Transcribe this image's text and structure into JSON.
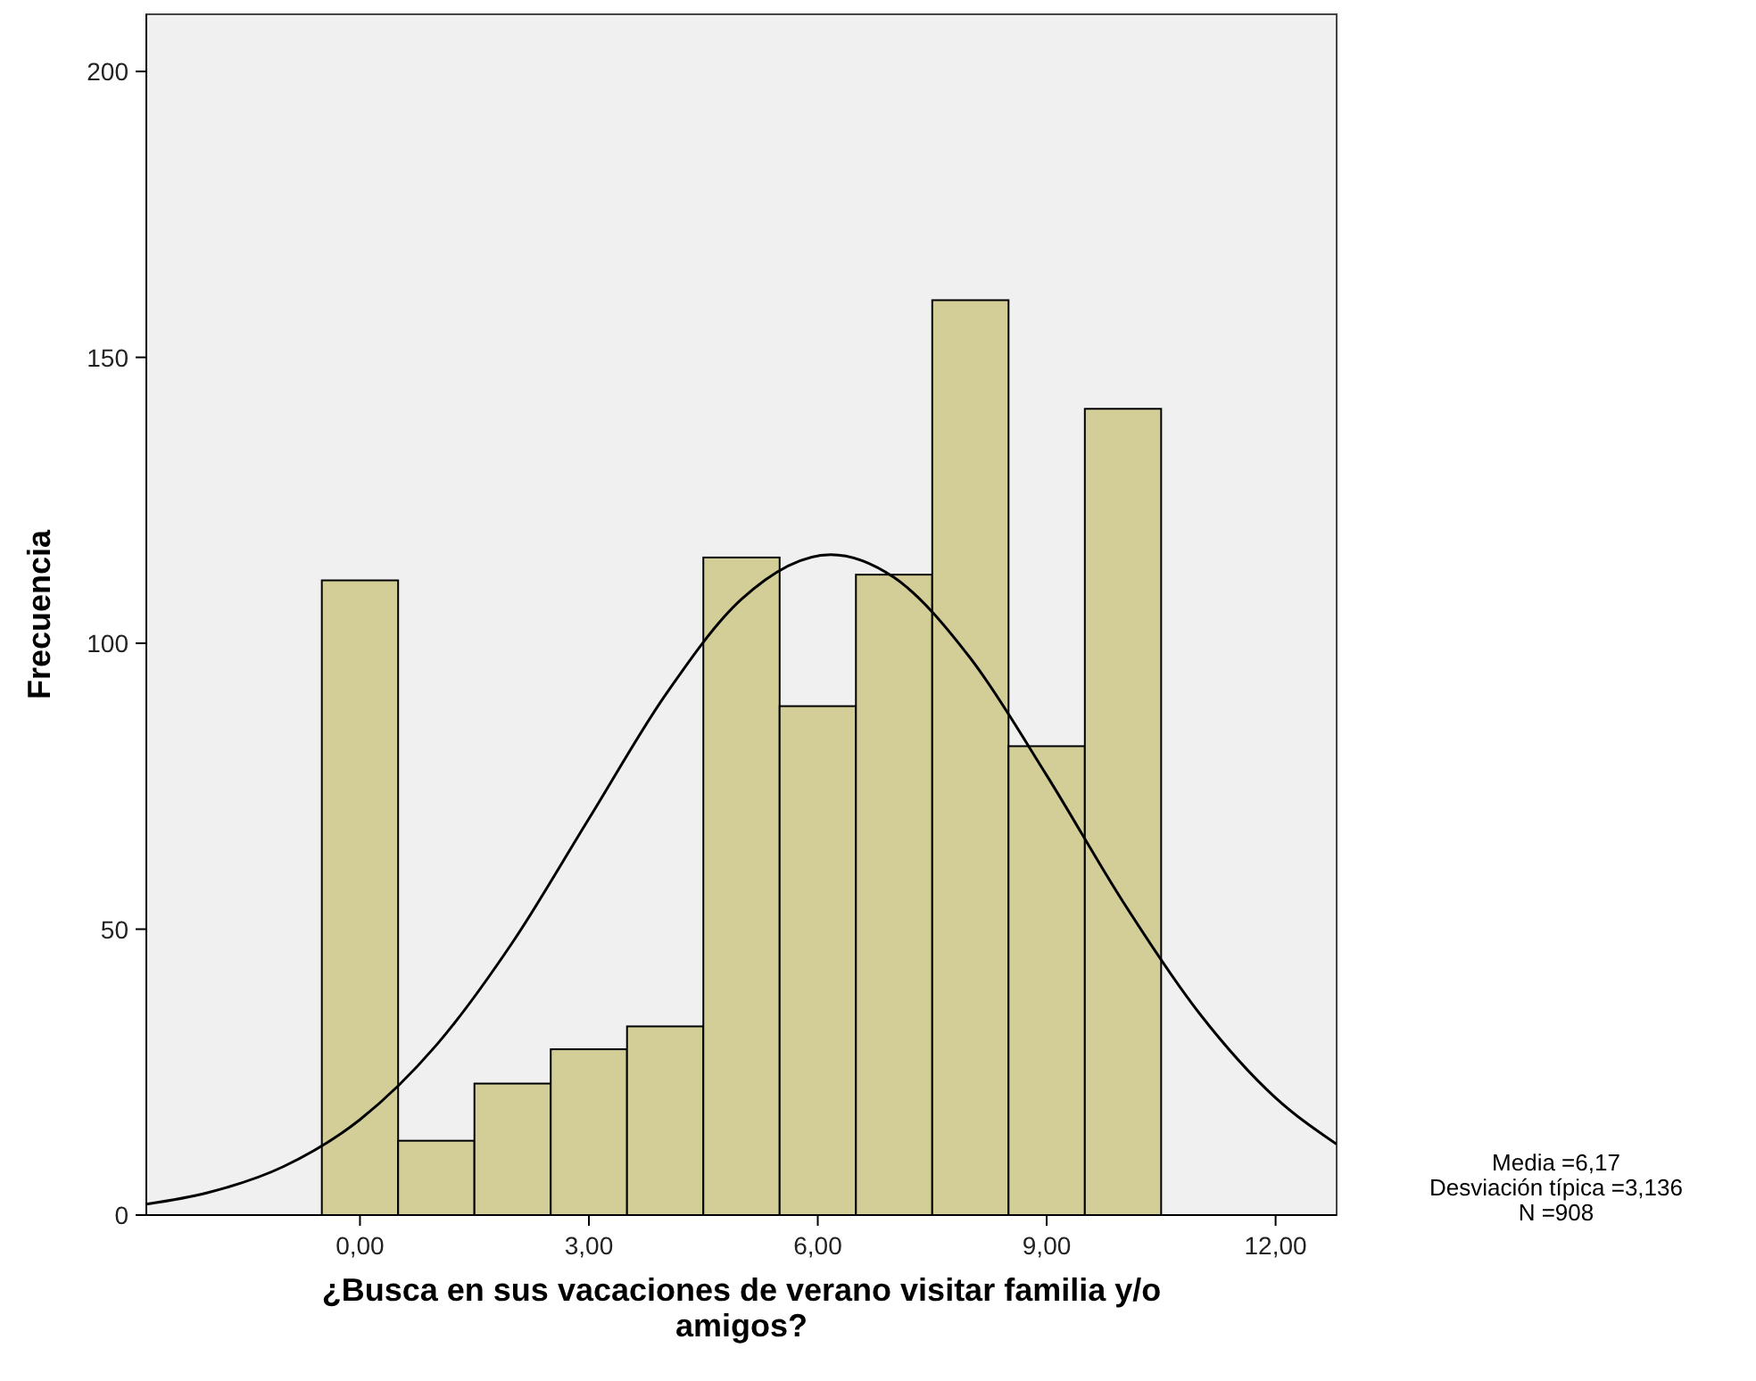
{
  "chart_data": {
    "type": "histogram",
    "xlabel": "¿Busca en sus vacaciones de verano visitar familia y/o amigos?",
    "ylabel": "Frecuencia",
    "bins": [
      -0.5,
      0.5,
      1.5,
      2.5,
      3.5,
      4.5,
      5.5,
      6.5,
      7.5,
      8.5,
      9.5,
      10.5
    ],
    "values": [
      111,
      13,
      23,
      29,
      33,
      115,
      89,
      112,
      160,
      82,
      141
    ],
    "color": "#d3ce97",
    "series": [
      {
        "type": "line",
        "color": "#000000",
        "x": [
          -2.8,
          -2,
          -1,
          0,
          1,
          2,
          3,
          4,
          5,
          6.17,
          7,
          8,
          9,
          10,
          11,
          12,
          12.8
        ],
        "values": [
          1.9,
          3.9,
          8.5,
          16.7,
          29.7,
          47.7,
          69.3,
          90.9,
          107.7,
          115.5,
          111.5,
          97.4,
          76.9,
          54.8,
          35.3,
          20.5,
          12.4
        ]
      }
    ],
    "xlim": [
      -2.8,
      12.8
    ],
    "xticks": [
      {
        "value": 0,
        "label": "0,00"
      },
      {
        "value": 3,
        "label": "3,00"
      },
      {
        "value": 6,
        "label": "6,00"
      },
      {
        "value": 9,
        "label": "9,00"
      },
      {
        "value": 12,
        "label": "12,00"
      }
    ],
    "ylim": [
      0,
      210
    ],
    "yticks": [
      0,
      50,
      100,
      150,
      200
    ],
    "grid": false,
    "annotations": [
      "Media =6,17",
      "Desviación típica =3,136",
      "N =908"
    ]
  }
}
